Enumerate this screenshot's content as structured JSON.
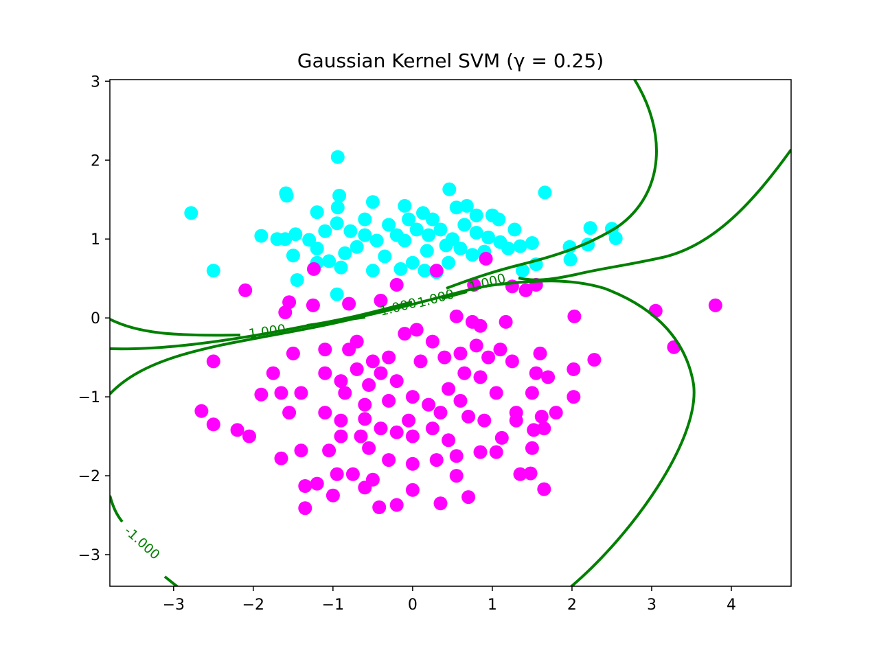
{
  "chart_data": {
    "type": "scatter",
    "title": "Gaussian Kernel SVM (γ = 0.25)",
    "xlabel": "",
    "ylabel": "",
    "xlim": [
      -3.8,
      4.75
    ],
    "ylim": [
      -3.4,
      3.02
    ],
    "x_ticks": [
      -3,
      -2,
      -1,
      0,
      1,
      2,
      3,
      4
    ],
    "x_tick_labels": [
      "−3",
      "−2",
      "−1",
      "0",
      "1",
      "2",
      "3",
      "4"
    ],
    "y_ticks": [
      -3,
      -2,
      -1,
      0,
      1,
      2,
      3
    ],
    "y_tick_labels": [
      "−3",
      "−2",
      "−1",
      "0",
      "1",
      "2",
      "3"
    ],
    "grid": false,
    "legend": "none",
    "colors": {
      "class_a": "#00ffff",
      "class_b": "#ff00ff",
      "boundary": "#008000"
    },
    "series": [
      {
        "color": "#00ffff",
        "points": [
          [
            -0.94,
            2.04
          ],
          [
            -1.59,
            1.58
          ],
          [
            -1.58,
            1.55
          ],
          [
            -0.92,
            1.55
          ],
          [
            0.46,
            1.63
          ],
          [
            1.66,
            1.59
          ],
          [
            -2.78,
            1.33
          ],
          [
            -1.2,
            1.34
          ],
          [
            -0.94,
            1.4
          ],
          [
            -0.5,
            1.47
          ],
          [
            -0.1,
            1.42
          ],
          [
            0.13,
            1.33
          ],
          [
            0.55,
            1.4
          ],
          [
            0.68,
            1.42
          ],
          [
            1.0,
            1.3
          ],
          [
            1.08,
            1.25
          ],
          [
            1.28,
            1.12
          ],
          [
            -1.9,
            1.04
          ],
          [
            -1.7,
            1.0
          ],
          [
            -1.6,
            1.0
          ],
          [
            -1.47,
            1.06
          ],
          [
            -1.3,
            0.99
          ],
          [
            -1.1,
            1.1
          ],
          [
            -0.95,
            1.2
          ],
          [
            -0.78,
            1.1
          ],
          [
            -0.6,
            1.05
          ],
          [
            -0.3,
            1.18
          ],
          [
            -0.2,
            1.05
          ],
          [
            -0.1,
            0.98
          ],
          [
            0.05,
            1.12
          ],
          [
            0.2,
            1.05
          ],
          [
            0.35,
            1.12
          ],
          [
            0.5,
            1.0
          ],
          [
            0.65,
            1.18
          ],
          [
            0.8,
            1.08
          ],
          [
            0.95,
            1.02
          ],
          [
            1.1,
            0.96
          ],
          [
            1.2,
            0.88
          ],
          [
            1.35,
            0.91
          ],
          [
            1.5,
            0.95
          ],
          [
            1.55,
            0.68
          ],
          [
            1.38,
            0.6
          ],
          [
            1.97,
            0.9
          ],
          [
            2.2,
            0.93
          ],
          [
            2.23,
            1.14
          ],
          [
            2.5,
            1.13
          ],
          [
            2.55,
            1.01
          ],
          [
            1.98,
            0.74
          ],
          [
            -2.5,
            0.6
          ],
          [
            -1.5,
            0.79
          ],
          [
            -1.45,
            0.48
          ],
          [
            -1.2,
            0.88
          ],
          [
            -1.05,
            0.72
          ],
          [
            -0.85,
            0.82
          ],
          [
            -0.7,
            0.9
          ],
          [
            -0.5,
            0.6
          ],
          [
            -0.35,
            0.78
          ],
          [
            -0.15,
            0.62
          ],
          [
            0.0,
            0.7
          ],
          [
            0.15,
            0.6
          ],
          [
            0.3,
            0.58
          ],
          [
            0.45,
            0.7
          ],
          [
            0.6,
            0.88
          ],
          [
            0.75,
            0.8
          ],
          [
            0.9,
            0.84
          ],
          [
            -0.95,
            0.3
          ],
          [
            -1.2,
            0.7
          ],
          [
            -0.9,
            0.64
          ],
          [
            0.18,
            0.85
          ],
          [
            0.42,
            0.92
          ],
          [
            -0.45,
            0.98
          ],
          [
            -0.05,
            1.25
          ],
          [
            0.25,
            1.25
          ],
          [
            -0.6,
            1.25
          ],
          [
            0.8,
            1.3
          ]
        ]
      },
      {
        "color": "#ff00ff",
        "points": [
          [
            -1.24,
            0.62
          ],
          [
            -2.1,
            0.35
          ],
          [
            -1.55,
            0.2
          ],
          [
            -1.6,
            0.07
          ],
          [
            -1.25,
            0.16
          ],
          [
            -0.8,
            0.18
          ],
          [
            -0.4,
            0.22
          ],
          [
            -0.2,
            0.42
          ],
          [
            0.3,
            0.6
          ],
          [
            0.92,
            0.75
          ],
          [
            0.77,
            0.42
          ],
          [
            1.25,
            0.4
          ],
          [
            1.42,
            0.35
          ],
          [
            1.55,
            0.42
          ],
          [
            0.55,
            0.02
          ],
          [
            0.75,
            -0.05
          ],
          [
            0.85,
            -0.1
          ],
          [
            1.17,
            -0.05
          ],
          [
            2.03,
            0.02
          ],
          [
            3.05,
            0.09
          ],
          [
            3.8,
            0.16
          ],
          [
            -2.5,
            -0.55
          ],
          [
            -1.5,
            -0.45
          ],
          [
            -1.1,
            -0.4
          ],
          [
            -0.8,
            -0.4
          ],
          [
            -0.7,
            -0.3
          ],
          [
            -0.5,
            -0.55
          ],
          [
            -0.3,
            -0.5
          ],
          [
            -0.1,
            -0.2
          ],
          [
            0.05,
            -0.15
          ],
          [
            0.25,
            -0.3
          ],
          [
            0.4,
            -0.5
          ],
          [
            0.6,
            -0.45
          ],
          [
            0.8,
            -0.35
          ],
          [
            0.95,
            -0.5
          ],
          [
            1.1,
            -0.4
          ],
          [
            1.25,
            -0.55
          ],
          [
            1.6,
            -0.45
          ],
          [
            2.02,
            -0.65
          ],
          [
            2.28,
            -0.53
          ],
          [
            3.28,
            -0.37
          ],
          [
            -1.75,
            -0.7
          ],
          [
            -1.9,
            -0.97
          ],
          [
            -1.65,
            -0.95
          ],
          [
            -1.4,
            -0.95
          ],
          [
            -1.1,
            -0.7
          ],
          [
            -0.9,
            -0.8
          ],
          [
            -0.7,
            -0.65
          ],
          [
            -0.55,
            -0.85
          ],
          [
            -0.4,
            -0.7
          ],
          [
            -0.2,
            -0.8
          ],
          [
            0.0,
            -1.0
          ],
          [
            0.2,
            -1.1
          ],
          [
            0.45,
            -0.9
          ],
          [
            0.65,
            -0.7
          ],
          [
            0.85,
            -0.75
          ],
          [
            1.05,
            -0.95
          ],
          [
            1.3,
            -1.2
          ],
          [
            1.5,
            -0.95
          ],
          [
            1.55,
            -0.7
          ],
          [
            1.7,
            -0.75
          ],
          [
            2.02,
            -1.0
          ],
          [
            1.8,
            -1.2
          ],
          [
            -2.65,
            -1.18
          ],
          [
            -2.5,
            -1.35
          ],
          [
            -2.2,
            -1.42
          ],
          [
            -2.05,
            -1.5
          ],
          [
            -1.55,
            -1.2
          ],
          [
            -1.1,
            -1.2
          ],
          [
            -0.9,
            -1.3
          ],
          [
            -0.6,
            -1.28
          ],
          [
            -0.4,
            -1.4
          ],
          [
            -0.2,
            -1.45
          ],
          [
            0.0,
            -1.5
          ],
          [
            0.25,
            -1.4
          ],
          [
            0.45,
            -1.55
          ],
          [
            0.7,
            -1.25
          ],
          [
            0.9,
            -1.3
          ],
          [
            1.12,
            -1.52
          ],
          [
            1.3,
            -1.3
          ],
          [
            1.52,
            -1.42
          ],
          [
            1.62,
            -1.25
          ],
          [
            1.65,
            -1.4
          ],
          [
            -1.65,
            -1.78
          ],
          [
            -1.4,
            -1.68
          ],
          [
            -1.05,
            -1.68
          ],
          [
            -0.9,
            -1.5
          ],
          [
            -0.65,
            -1.5
          ],
          [
            -0.55,
            -1.65
          ],
          [
            -0.3,
            -1.8
          ],
          [
            0.0,
            -1.85
          ],
          [
            0.3,
            -1.8
          ],
          [
            0.55,
            -1.75
          ],
          [
            0.85,
            -1.7
          ],
          [
            1.05,
            -1.7
          ],
          [
            1.5,
            -1.65
          ],
          [
            -1.35,
            -2.13
          ],
          [
            -1.2,
            -2.1
          ],
          [
            -1.0,
            -2.25
          ],
          [
            -0.95,
            -1.98
          ],
          [
            -0.75,
            -1.98
          ],
          [
            -0.6,
            -2.15
          ],
          [
            -0.5,
            -2.05
          ],
          [
            -0.42,
            -2.4
          ],
          [
            -0.2,
            -2.37
          ],
          [
            0.0,
            -2.18
          ],
          [
            0.35,
            -2.35
          ],
          [
            0.55,
            -2.0
          ],
          [
            0.7,
            -2.27
          ],
          [
            1.35,
            -1.98
          ],
          [
            1.48,
            -1.97
          ],
          [
            1.65,
            -2.17
          ],
          [
            -1.35,
            -2.41
          ],
          [
            -0.85,
            -0.95
          ],
          [
            -0.3,
            -1.05
          ],
          [
            0.1,
            -0.55
          ],
          [
            -0.6,
            -1.1
          ],
          [
            0.35,
            -1.2
          ],
          [
            -0.05,
            -1.3
          ],
          [
            0.6,
            -1.05
          ]
        ]
      }
    ],
    "contour_level_label": "1.000",
    "contour_labels": [
      "1.000",
      "1.000",
      "1.000",
      "1.000",
      "-1.000"
    ]
  }
}
